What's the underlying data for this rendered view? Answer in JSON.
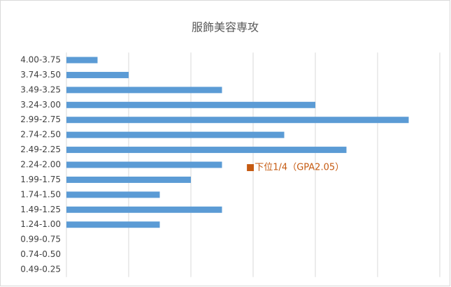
{
  "chart_data": {
    "type": "barh",
    "title": "服飾美容専攻",
    "categories": [
      "4.00-3.75",
      "3.74-3.50",
      "3.49-3.25",
      "3.24-3.00",
      "2.99-2.75",
      "2.74-2.50",
      "2.49-2.25",
      "2.24-2.00",
      "1.99-1.75",
      "1.74-1.50",
      "1.49-1.25",
      "1.24-1.00",
      "0.99-0.75",
      "0.74-0.50",
      "0.49-0.25"
    ],
    "values": [
      1,
      2,
      5,
      8,
      11,
      7,
      9,
      5,
      4,
      3,
      5,
      3,
      0,
      0,
      0
    ],
    "color": "#5b9bd5",
    "xlim": [
      0,
      12
    ],
    "xticks": [
      0,
      2,
      4,
      6,
      8,
      10,
      12
    ],
    "grid": true,
    "annotation": {
      "text": "■下位1/4（GPA2.05）",
      "color": "#c55a11"
    }
  }
}
